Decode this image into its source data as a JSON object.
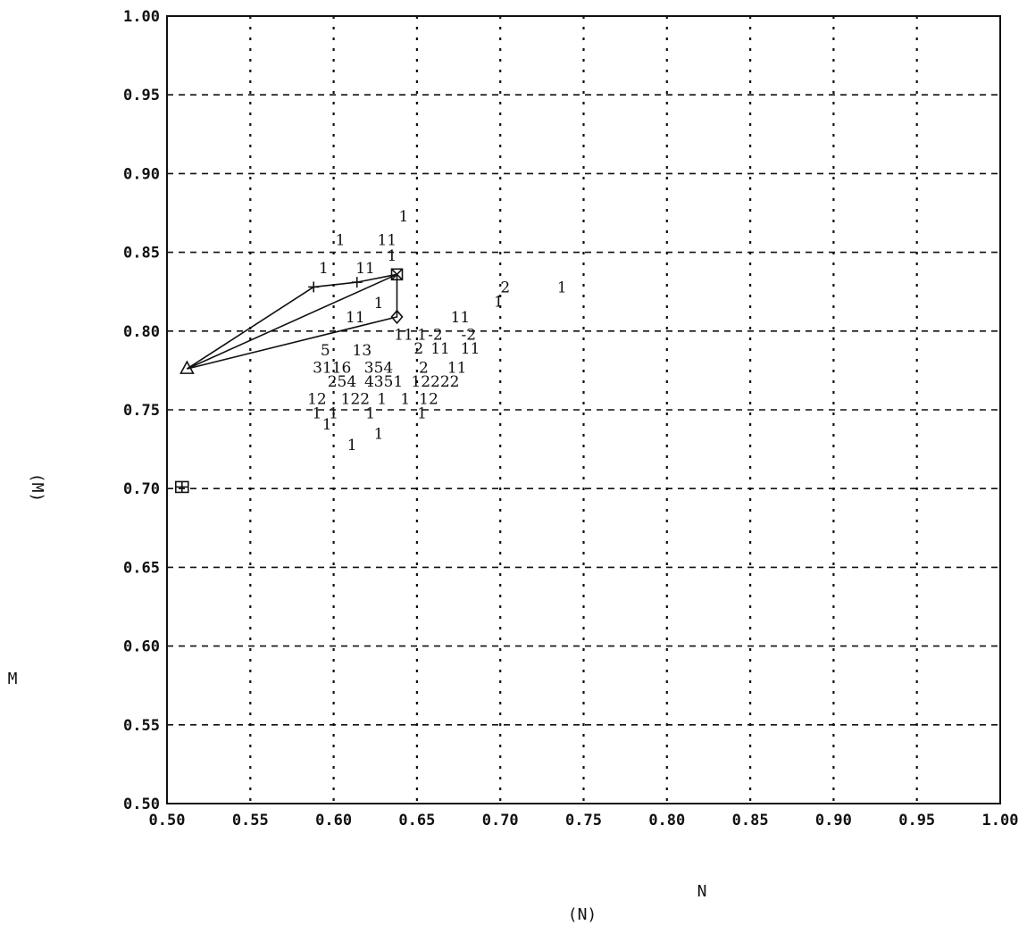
{
  "chart_data": {
    "type": "scatter",
    "title": "",
    "xlabel": "N",
    "xlabel_sub": "(N)",
    "ylabel": "M",
    "ylabel_sub": "(M)",
    "xlim": [
      0.5,
      1.0
    ],
    "ylim": [
      0.5,
      1.0
    ],
    "x_ticks": [
      "0.50",
      "0.55",
      "0.60",
      "0.65",
      "0.70",
      "0.75",
      "0.80",
      "0.85",
      "0.90",
      "0.95",
      "1.00"
    ],
    "y_ticks": [
      "0.50",
      "0.55",
      "0.60",
      "0.65",
      "0.70",
      "0.75",
      "0.80",
      "0.85",
      "0.90",
      "0.95",
      "1.00"
    ],
    "grid": true,
    "points": [
      {
        "x": 0.642,
        "y": 0.873,
        "label": "1"
      },
      {
        "x": 0.604,
        "y": 0.858,
        "label": "1"
      },
      {
        "x": 0.632,
        "y": 0.858,
        "label": "11"
      },
      {
        "x": 0.635,
        "y": 0.848,
        "label": "1"
      },
      {
        "x": 0.594,
        "y": 0.84,
        "label": "1"
      },
      {
        "x": 0.619,
        "y": 0.84,
        "label": "11"
      },
      {
        "x": 0.703,
        "y": 0.828,
        "label": "2"
      },
      {
        "x": 0.737,
        "y": 0.828,
        "label": "1"
      },
      {
        "x": 0.699,
        "y": 0.819,
        "label": "1"
      },
      {
        "x": 0.627,
        "y": 0.818,
        "label": "1"
      },
      {
        "x": 0.613,
        "y": 0.809,
        "label": "11"
      },
      {
        "x": 0.676,
        "y": 0.809,
        "label": "11"
      },
      {
        "x": 0.642,
        "y": 0.798,
        "label": "11"
      },
      {
        "x": 0.661,
        "y": 0.798,
        "label": "-2"
      },
      {
        "x": 0.681,
        "y": 0.798,
        "label": "-2"
      },
      {
        "x": 0.653,
        "y": 0.798,
        "label": "1"
      },
      {
        "x": 0.595,
        "y": 0.788,
        "label": "5"
      },
      {
        "x": 0.617,
        "y": 0.788,
        "label": "13"
      },
      {
        "x": 0.651,
        "y": 0.789,
        "label": "2"
      },
      {
        "x": 0.664,
        "y": 0.789,
        "label": "11"
      },
      {
        "x": 0.682,
        "y": 0.789,
        "label": "11"
      },
      {
        "x": 0.599,
        "y": 0.777,
        "label": "3116"
      },
      {
        "x": 0.627,
        "y": 0.777,
        "label": "354"
      },
      {
        "x": 0.654,
        "y": 0.777,
        "label": "2"
      },
      {
        "x": 0.674,
        "y": 0.777,
        "label": "11"
      },
      {
        "x": 0.605,
        "y": 0.768,
        "label": "254"
      },
      {
        "x": 0.63,
        "y": 0.768,
        "label": "4351"
      },
      {
        "x": 0.661,
        "y": 0.768,
        "label": "12222"
      },
      {
        "x": 0.59,
        "y": 0.757,
        "label": "12"
      },
      {
        "x": 0.613,
        "y": 0.757,
        "label": "122"
      },
      {
        "x": 0.629,
        "y": 0.757,
        "label": "1"
      },
      {
        "x": 0.643,
        "y": 0.757,
        "label": "1"
      },
      {
        "x": 0.657,
        "y": 0.757,
        "label": "12"
      },
      {
        "x": 0.59,
        "y": 0.748,
        "label": "1"
      },
      {
        "x": 0.6,
        "y": 0.748,
        "label": "1"
      },
      {
        "x": 0.622,
        "y": 0.748,
        "label": "1"
      },
      {
        "x": 0.653,
        "y": 0.748,
        "label": "1"
      },
      {
        "x": 0.596,
        "y": 0.741,
        "label": "1"
      },
      {
        "x": 0.627,
        "y": 0.735,
        "label": "1"
      },
      {
        "x": 0.611,
        "y": 0.728,
        "label": "1"
      }
    ],
    "lines": [
      {
        "points": [
          [
            0.512,
            0.776
          ],
          [
            0.588,
            0.828
          ],
          [
            0.614,
            0.831
          ],
          [
            0.638,
            0.836
          ],
          [
            0.512,
            0.776
          ]
        ]
      },
      {
        "points": [
          [
            0.512,
            0.776
          ],
          [
            0.638,
            0.809
          ],
          [
            0.638,
            0.836
          ]
        ]
      }
    ],
    "markers": [
      {
        "shape": "triangle",
        "x": 0.512,
        "y": 0.776
      },
      {
        "shape": "plus",
        "x": 0.588,
        "y": 0.828
      },
      {
        "shape": "plus",
        "x": 0.614,
        "y": 0.831
      },
      {
        "shape": "boxed-cross",
        "x": 0.638,
        "y": 0.836
      },
      {
        "shape": "diamond",
        "x": 0.638,
        "y": 0.809
      },
      {
        "shape": "boxed-plus",
        "x": 0.509,
        "y": 0.701
      }
    ]
  }
}
